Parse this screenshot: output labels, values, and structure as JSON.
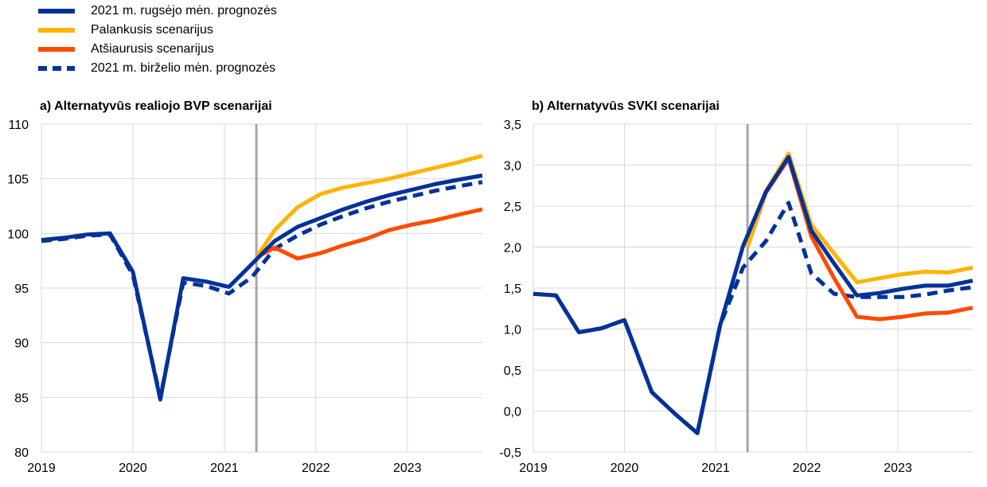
{
  "legend": [
    {
      "label": "2021 m. rugsėjo mėn. prognozės",
      "color": "#003299",
      "dashed": false
    },
    {
      "label": "Palankusis scenarijus",
      "color": "#FFB400",
      "dashed": false
    },
    {
      "label": "Atšiaurusis scenarijus",
      "color": "#FF4B00",
      "dashed": false
    },
    {
      "label": "2021 m. birželio mėn. prognozės",
      "color": "#003299",
      "dashed": true
    }
  ],
  "chart_data": [
    {
      "type": "line",
      "title": "a) Alternatyvūs realiojo BVP scenarijai",
      "xlabel": "",
      "ylabel": "",
      "x_ticks": [
        "2019",
        "2020",
        "2021",
        "2022",
        "2023"
      ],
      "y_ticks": [
        "80",
        "85",
        "90",
        "95",
        "100",
        "105",
        "110"
      ],
      "ylim": [
        80,
        110
      ],
      "xlim": [
        2019.0,
        2023.82
      ],
      "projection_start": 2021.35,
      "grid": "horizontal and vertical",
      "series": [
        {
          "name": "2021 m. birželio mėn. prognozės",
          "color": "#003299",
          "dashed": true,
          "x": [
            2019.0,
            2019.25,
            2019.5,
            2019.75,
            2020.0,
            2020.3,
            2020.55,
            2020.8,
            2021.05,
            2021.3,
            2021.55,
            2021.8,
            2022.05,
            2022.3,
            2022.55,
            2022.8,
            2023.05,
            2023.3,
            2023.55,
            2023.82
          ],
          "values": [
            99.3,
            99.5,
            99.8,
            99.9,
            96.2,
            85.0,
            95.5,
            95.2,
            94.5,
            96.0,
            98.6,
            99.8,
            100.8,
            101.6,
            102.3,
            102.9,
            103.4,
            103.9,
            104.3,
            104.7
          ]
        },
        {
          "name": "Atšiaurusis scenarijus",
          "color": "#FF4B00",
          "dashed": false,
          "x": [
            2021.35,
            2021.55,
            2021.8,
            2022.05,
            2022.3,
            2022.55,
            2022.8,
            2023.05,
            2023.3,
            2023.55,
            2023.82
          ],
          "values": [
            97.8,
            98.7,
            97.7,
            98.2,
            98.9,
            99.5,
            100.3,
            100.8,
            101.2,
            101.7,
            102.2
          ]
        },
        {
          "name": "Palankusis scenarijus",
          "color": "#FFB400",
          "dashed": false,
          "x": [
            2021.35,
            2021.55,
            2021.8,
            2022.05,
            2022.3,
            2022.55,
            2022.8,
            2023.05,
            2023.3,
            2023.55,
            2023.82
          ],
          "values": [
            97.8,
            100.3,
            102.4,
            103.6,
            104.2,
            104.6,
            105.0,
            105.5,
            106.0,
            106.5,
            107.1
          ]
        },
        {
          "name": "2021 m. rugsėjo mėn. prognozės",
          "color": "#003299",
          "dashed": false,
          "x": [
            2019.0,
            2019.25,
            2019.5,
            2019.75,
            2020.0,
            2020.3,
            2020.55,
            2020.8,
            2021.05,
            2021.3,
            2021.55,
            2021.8,
            2022.05,
            2022.3,
            2022.55,
            2022.8,
            2023.05,
            2023.3,
            2023.55,
            2023.82
          ],
          "values": [
            99.4,
            99.6,
            99.9,
            100.0,
            96.5,
            84.8,
            95.9,
            95.6,
            95.1,
            97.2,
            99.3,
            100.6,
            101.4,
            102.2,
            102.9,
            103.5,
            104.0,
            104.5,
            104.9,
            105.3
          ]
        }
      ]
    },
    {
      "type": "line",
      "title": "b) Alternatyvūs SVKI scenarijai",
      "xlabel": "",
      "ylabel": "",
      "x_ticks": [
        "2019",
        "2020",
        "2021",
        "2022",
        "2023"
      ],
      "y_ticks": [
        "-0,5",
        "0,0",
        "0,5",
        "1,0",
        "1,5",
        "2,0",
        "2,5",
        "3,0",
        "3,5"
      ],
      "ylim": [
        -0.5,
        3.5
      ],
      "xlim": [
        2019.0,
        2023.82
      ],
      "projection_start": 2021.35,
      "grid": "horizontal and vertical",
      "series": [
        {
          "name": "2021 m. birželio mėn. prognozės",
          "color": "#003299",
          "dashed": true,
          "x": [
            2019.0,
            2019.25,
            2019.5,
            2019.75,
            2020.0,
            2020.3,
            2020.55,
            2020.8,
            2021.05,
            2021.3,
            2021.55,
            2021.8,
            2022.05,
            2022.3,
            2022.55,
            2022.8,
            2023.05,
            2023.3,
            2023.55,
            2023.82
          ],
          "values": [
            1.43,
            1.41,
            0.96,
            1.01,
            1.11,
            0.23,
            -0.03,
            -0.27,
            1.05,
            1.75,
            2.07,
            2.54,
            1.68,
            1.43,
            1.39,
            1.39,
            1.39,
            1.42,
            1.47,
            1.51
          ]
        },
        {
          "name": "Atšiaurusis scenarijus",
          "color": "#FF4B00",
          "dashed": false,
          "x": [
            2021.35,
            2021.55,
            2021.8,
            2022.05,
            2022.3,
            2022.55,
            2022.8,
            2023.05,
            2023.3,
            2023.55,
            2023.82
          ],
          "values": [
            2.0,
            2.66,
            3.08,
            2.13,
            1.62,
            1.15,
            1.12,
            1.15,
            1.19,
            1.2,
            1.26
          ]
        },
        {
          "name": "Palankusis scenarijus",
          "color": "#FFB400",
          "dashed": false,
          "x": [
            2021.35,
            2021.55,
            2021.8,
            2022.05,
            2022.3,
            2022.55,
            2022.8,
            2023.05,
            2023.3,
            2023.55,
            2023.82
          ],
          "values": [
            2.0,
            2.68,
            3.14,
            2.27,
            1.92,
            1.57,
            1.62,
            1.67,
            1.7,
            1.69,
            1.75
          ]
        },
        {
          "name": "2021 m. rugsėjo mėn. prognozės",
          "color": "#003299",
          "dashed": false,
          "x": [
            2019.0,
            2019.25,
            2019.5,
            2019.75,
            2020.0,
            2020.3,
            2020.55,
            2020.8,
            2021.05,
            2021.3,
            2021.55,
            2021.8,
            2022.05,
            2022.3,
            2022.55,
            2022.8,
            2023.05,
            2023.3,
            2023.55,
            2023.82
          ],
          "values": [
            1.43,
            1.41,
            0.96,
            1.01,
            1.11,
            0.23,
            -0.03,
            -0.27,
            1.05,
            2.01,
            2.67,
            3.1,
            2.2,
            1.8,
            1.41,
            1.44,
            1.49,
            1.53,
            1.53,
            1.59
          ]
        }
      ]
    }
  ]
}
